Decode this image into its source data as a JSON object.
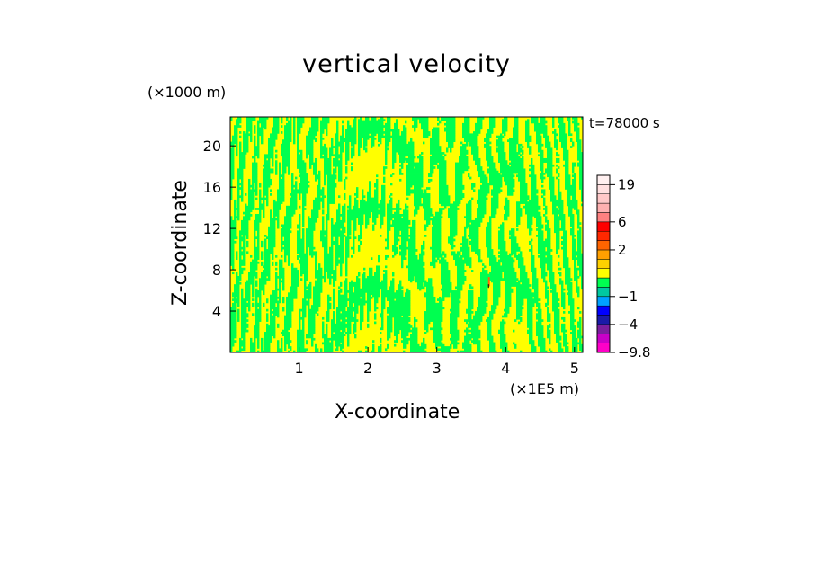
{
  "chart_data": {
    "type": "heatmap",
    "title": "vertical velocity",
    "xlabel": "X-coordinate",
    "ylabel": "Z-coordinate",
    "x_scale_label": "(×1E5 m)",
    "y_scale_label": "(×1000 m)",
    "time_label": "t=78000 s",
    "xlim": [
      0,
      5.12
    ],
    "ylim": [
      0,
      22.8
    ],
    "x_ticks": [
      "1",
      "2",
      "3",
      "4",
      "5"
    ],
    "y_ticks": [
      "4",
      "8",
      "12",
      "16",
      "20"
    ],
    "colorbar": {
      "labels": [
        "19",
        "6",
        "2",
        "−1",
        "−4",
        "−9.8"
      ],
      "label_values": [
        19,
        6,
        2,
        -1,
        -4,
        -9.8
      ],
      "levels": [
        -9.8,
        -8,
        -6,
        -4,
        -3,
        -2,
        -1,
        -0.5,
        0,
        0.5,
        1,
        2,
        3,
        4,
        6,
        9,
        13,
        16,
        19,
        22
      ],
      "colors": [
        "#ff00c8",
        "#c800c8",
        "#7a1e9e",
        "#1a1aa8",
        "#0000ff",
        "#00a0ff",
        "#00c8a0",
        "#00ff50",
        "#ffff00",
        "#ffd000",
        "#ffa000",
        "#ff6400",
        "#ff2800",
        "#ff0000",
        "#ff8080",
        "#ffb0b0",
        "#ffc8c8",
        "#ffe0e0",
        "#fff0f0"
      ]
    },
    "field_summary": {
      "dominant_colors": [
        "#ffff00",
        "#00ff50"
      ],
      "description_values": "alternating weak updraft (0 to 0.5) and weak downdraft (-0.5 to 0) bands, with a small local extreme near x=3.75, z=6.5"
    }
  },
  "colors": {
    "positive": "#ffff00",
    "negative": "#00ff50",
    "frame": "#000000"
  }
}
